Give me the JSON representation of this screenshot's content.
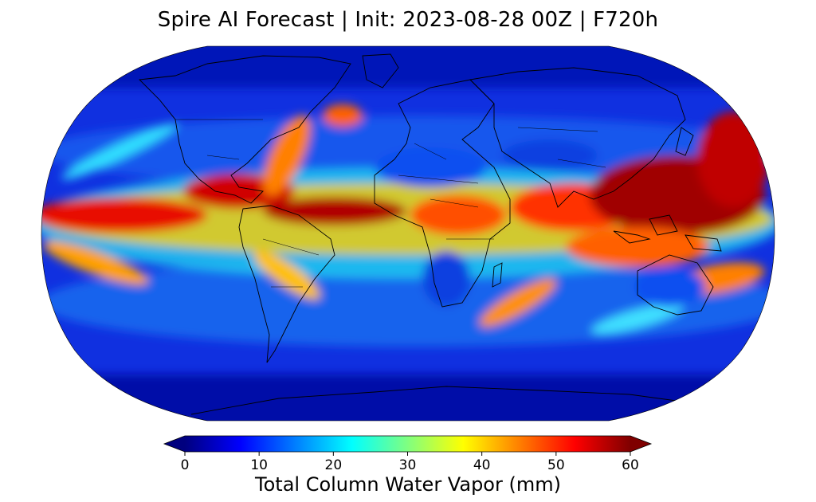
{
  "title": "Spire AI Forecast | Init: 2023-08-28 00Z | F720h",
  "map": {
    "projection": "Robinson",
    "variable": "Total Column Water Vapor",
    "units": "mm",
    "features": [
      "coastlines",
      "country borders"
    ]
  },
  "colorbar": {
    "label": "Total Column Water Vapor (mm)",
    "colormap": "jet",
    "min": 0,
    "max": 60,
    "extend": "both",
    "ticks": [
      "0",
      "10",
      "20",
      "30",
      "40",
      "50",
      "60"
    ],
    "colors": [
      "#00007f",
      "#0000ff",
      "#0080ff",
      "#00ffff",
      "#80ff80",
      "#ffff00",
      "#ff8000",
      "#ff0000",
      "#7f0000"
    ]
  }
}
